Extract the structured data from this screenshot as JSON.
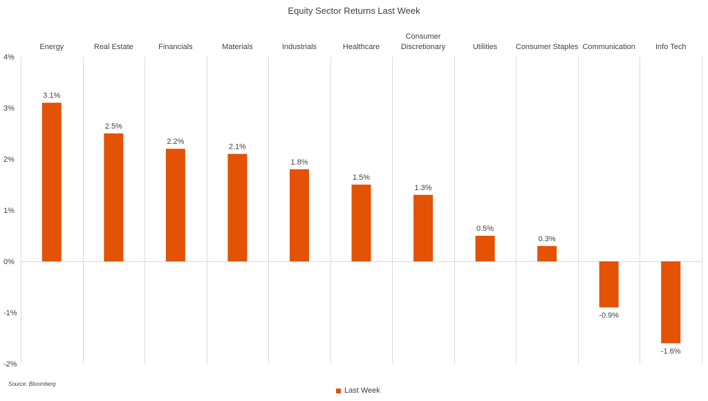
{
  "chart_data": {
    "type": "bar",
    "title": "Equity Sector Returns Last Week",
    "categories": [
      [
        "Energy"
      ],
      [
        "Real Estate"
      ],
      [
        "Financials"
      ],
      [
        "Materials"
      ],
      [
        "Industrials"
      ],
      [
        "Healthcare"
      ],
      [
        "Consumer",
        "Discretionary"
      ],
      [
        "Utilities"
      ],
      [
        "Consumer Staples"
      ],
      [
        "Communication"
      ],
      [
        "Info Tech"
      ]
    ],
    "series": [
      {
        "name": "Last Week",
        "values": [
          3.1,
          2.5,
          2.2,
          2.1,
          1.8,
          1.5,
          1.3,
          0.5,
          0.3,
          -0.9,
          -1.6
        ],
        "labels": [
          "3.1%",
          "2.5%",
          "2.2%",
          "2.1%",
          "1.8%",
          "1.5%",
          "1.3%",
          "0.5%",
          "0.3%",
          "-0.9%",
          "-1.6%"
        ]
      }
    ],
    "ylim": [
      -2,
      4
    ],
    "yticks": [
      4,
      3,
      2,
      1,
      0,
      -1,
      -2
    ],
    "ytick_labels": [
      "4%",
      "3%",
      "2%",
      "1%",
      "0%",
      "-1%",
      "-2%"
    ],
    "category_axis_position": "top",
    "grid": "vertical category separators",
    "legend_position": "bottom-center",
    "bar_color": "#E35205",
    "grid_color": "#D9D9D9"
  },
  "source_note": "Source: Bloomberg",
  "legend_label": "Last Week"
}
